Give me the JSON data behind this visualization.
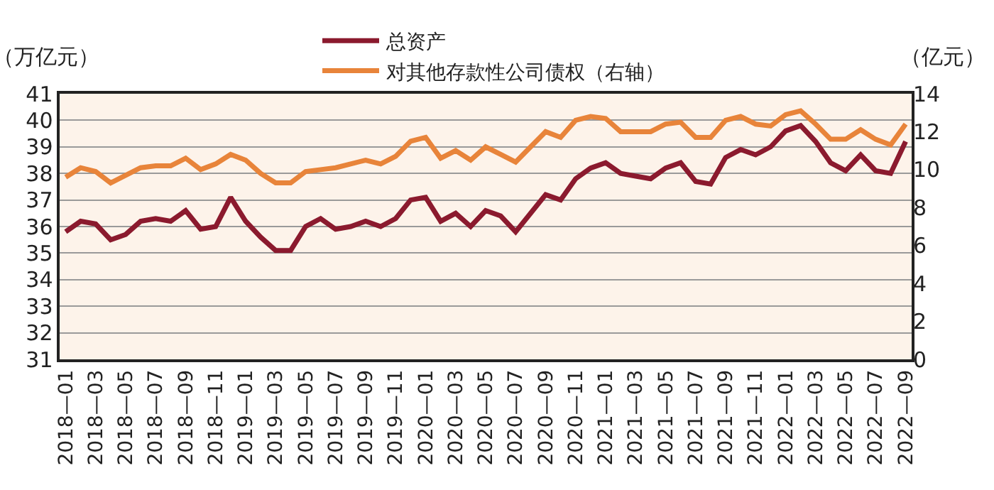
{
  "chart_data": {
    "type": "line",
    "categories": [
      "2018—01",
      null,
      "2018—03",
      null,
      "2018—05",
      null,
      "2018—07",
      null,
      "2018—09",
      null,
      "2018—11",
      null,
      "2019—01",
      null,
      "2019—03",
      null,
      "2019—05",
      null,
      "2019—07",
      null,
      "2019—09",
      null,
      "2019—11",
      null,
      "2020—01",
      null,
      "2020—03",
      null,
      "2020—05",
      null,
      "2020—07",
      null,
      "2020—09",
      null,
      "2020—11",
      null,
      "2021—01",
      null,
      "2021—03",
      null,
      "2021—05",
      null,
      "2021—07",
      null,
      "2021—09",
      null,
      "2021—11",
      null,
      "2022—01",
      null,
      "2022—03",
      null,
      "2022—05",
      null,
      "2022—07",
      null,
      "2022—09"
    ],
    "series": [
      {
        "name": "总资产",
        "color": "#8b1a2e",
        "values": [
          35.8,
          36.2,
          36.1,
          35.5,
          35.7,
          36.2,
          36.3,
          36.2,
          36.6,
          35.9,
          36.0,
          37.1,
          36.2,
          35.6,
          35.1,
          35.1,
          36.0,
          36.3,
          35.9,
          36.0,
          36.2,
          36.0,
          36.3,
          37.0,
          37.1,
          36.2,
          36.5,
          36.0,
          36.6,
          36.4,
          35.8,
          36.5,
          37.2,
          37.0,
          37.8,
          38.2,
          38.4,
          38.0,
          37.9,
          37.8,
          38.2,
          38.4,
          37.7,
          37.6,
          38.6,
          38.9,
          38.7,
          39.0,
          39.6,
          39.8,
          39.2,
          38.4,
          38.1,
          38.7,
          38.1,
          38.0,
          39.2
        ]
      },
      {
        "name": "对其他存款性公司债权（右轴）",
        "color": "#e8843a",
        "axis": "y2",
        "values": [
          9.6,
          10.1,
          9.9,
          9.3,
          9.7,
          10.1,
          10.2,
          10.2,
          10.6,
          10.0,
          10.3,
          10.8,
          10.5,
          9.8,
          9.3,
          9.3,
          9.9,
          10.0,
          10.1,
          10.3,
          10.5,
          10.3,
          10.7,
          11.5,
          11.7,
          10.6,
          11.0,
          10.5,
          11.2,
          10.8,
          10.4,
          11.2,
          12.0,
          11.7,
          12.6,
          12.8,
          12.7,
          12.0,
          12.0,
          12.0,
          12.4,
          12.5,
          11.7,
          11.7,
          12.6,
          12.8,
          12.4,
          12.3,
          12.9,
          13.1,
          12.4,
          11.6,
          11.6,
          12.1,
          11.6,
          11.3,
          12.4
        ]
      }
    ],
    "ylabel": "（万亿元）",
    "y2label": "（亿元）",
    "ylim": [
      31,
      41
    ],
    "yticks": [
      31,
      32,
      33,
      34,
      35,
      36,
      37,
      38,
      39,
      40,
      41
    ],
    "y2lim": [
      0,
      14
    ],
    "y2ticks": [
      0,
      2,
      4,
      6,
      8,
      10,
      12,
      14
    ],
    "grid": "y",
    "legend": "top",
    "marker": "none",
    "line_style": "solid"
  }
}
